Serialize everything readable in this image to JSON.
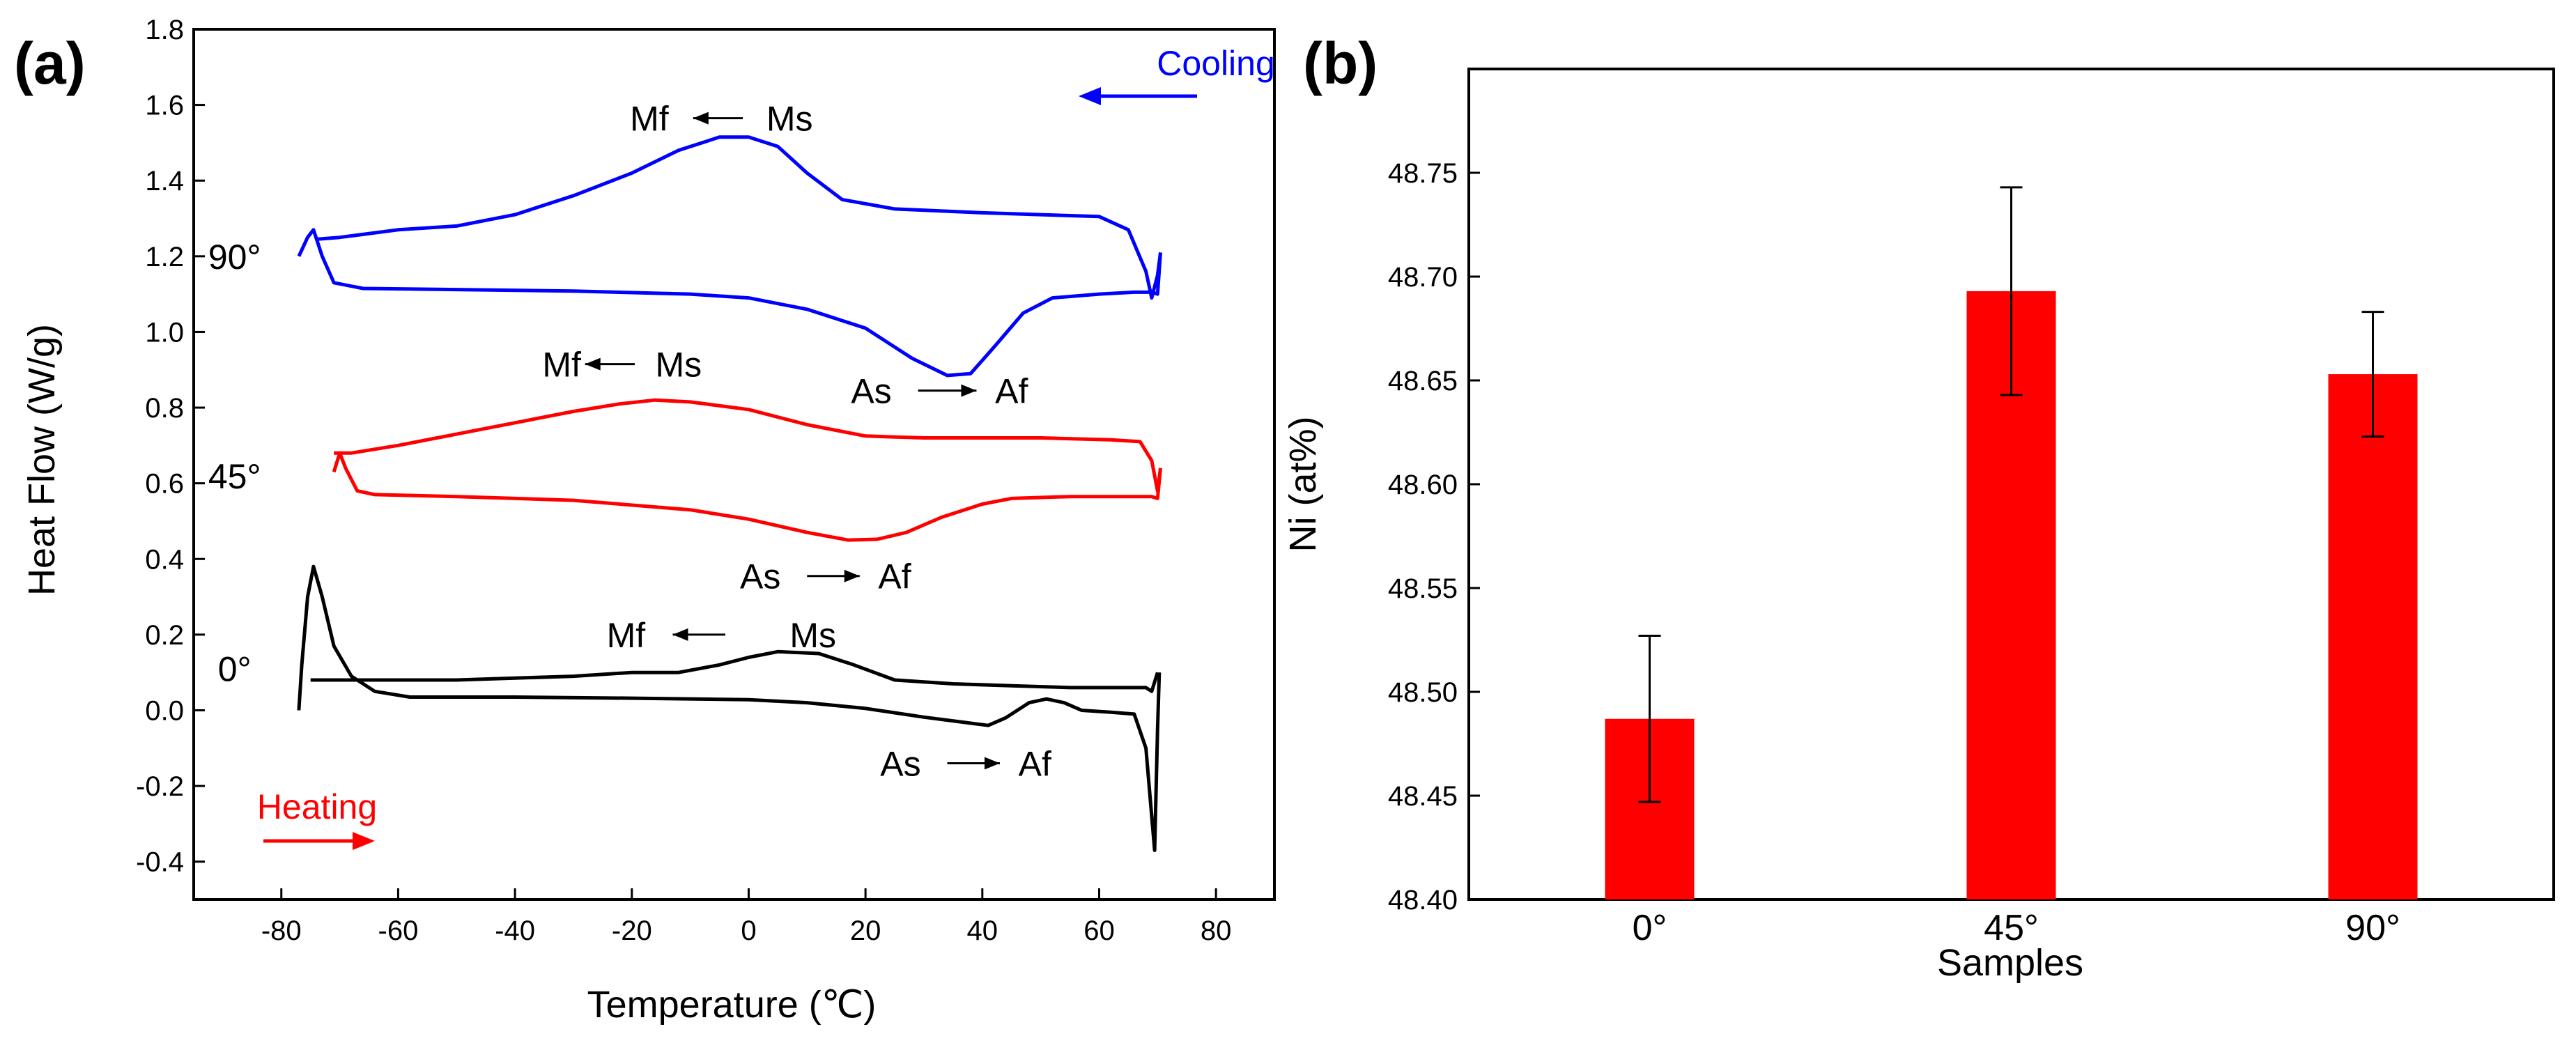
{
  "chart_data": [
    {
      "panel_label": "(a)",
      "type": "line",
      "xlabel": "Temperature (℃)",
      "ylabel": "Heat Flow (W/g)",
      "xlim": [
        -95,
        90
      ],
      "ylim": [
        -0.5,
        1.8
      ],
      "xticks": [
        -80,
        -60,
        -40,
        -20,
        0,
        20,
        40,
        60,
        80
      ],
      "yticks": [
        "-0.4",
        "-0.2",
        "0.0",
        "0.2",
        "0.4",
        "0.6",
        "0.8",
        "1.0",
        "1.2",
        "1.4",
        "1.6",
        "1.8"
      ],
      "cooling_label": "Cooling",
      "heating_label": "Heating",
      "series": [
        {
          "name": "0°",
          "color": "#000000",
          "cooling": [
            [
              70,
              0.1
            ],
            [
              69,
              0.05
            ],
            [
              68,
              0.06
            ],
            [
              65,
              0.06
            ],
            [
              55,
              0.06
            ],
            [
              45,
              0.065
            ],
            [
              35,
              0.07
            ],
            [
              25,
              0.08
            ],
            [
              18,
              0.12
            ],
            [
              12,
              0.15
            ],
            [
              5,
              0.155
            ],
            [
              0,
              0.14
            ],
            [
              -5,
              0.12
            ],
            [
              -12,
              0.1
            ],
            [
              -20,
              0.1
            ],
            [
              -30,
              0.09
            ],
            [
              -40,
              0.085
            ],
            [
              -50,
              0.08
            ],
            [
              -60,
              0.08
            ],
            [
              -70,
              0.08
            ],
            [
              -75,
              0.08
            ]
          ],
          "heating": [
            [
              -77,
              0.0
            ],
            [
              -76.5,
              0.12
            ],
            [
              -75.5,
              0.3
            ],
            [
              -74.5,
              0.38
            ],
            [
              -73,
              0.3
            ],
            [
              -71,
              0.17
            ],
            [
              -68,
              0.09
            ],
            [
              -64,
              0.05
            ],
            [
              -58,
              0.035
            ],
            [
              -40,
              0.035
            ],
            [
              -20,
              0.032
            ],
            [
              0,
              0.028
            ],
            [
              10,
              0.02
            ],
            [
              20,
              0.005
            ],
            [
              30,
              -0.018
            ],
            [
              37,
              -0.032
            ],
            [
              41,
              -0.04
            ],
            [
              44,
              -0.02
            ],
            [
              48,
              0.02
            ],
            [
              51,
              0.03
            ],
            [
              54,
              0.02
            ],
            [
              57,
              0.0
            ],
            [
              62,
              -0.005
            ],
            [
              66,
              -0.01
            ],
            [
              68,
              -0.1
            ],
            [
              69,
              -0.28
            ],
            [
              69.5,
              -0.37
            ],
            [
              70,
              -0.05
            ],
            [
              70.3,
              0.1
            ]
          ]
        },
        {
          "name": "45°",
          "color": "#ff0000",
          "cooling": [
            [
              70.5,
              0.64
            ],
            [
              70,
              0.58
            ],
            [
              69,
              0.66
            ],
            [
              67,
              0.71
            ],
            [
              62,
              0.715
            ],
            [
              50,
              0.72
            ],
            [
              40,
              0.72
            ],
            [
              30,
              0.72
            ],
            [
              20,
              0.725
            ],
            [
              10,
              0.755
            ],
            [
              0,
              0.795
            ],
            [
              -10,
              0.815
            ],
            [
              -16,
              0.82
            ],
            [
              -22,
              0.81
            ],
            [
              -30,
              0.79
            ],
            [
              -40,
              0.76
            ],
            [
              -50,
              0.73
            ],
            [
              -60,
              0.7
            ],
            [
              -68,
              0.68
            ],
            [
              -71,
              0.68
            ]
          ],
          "heating": [
            [
              -71,
              0.63
            ],
            [
              -70,
              0.68
            ],
            [
              -69,
              0.64
            ],
            [
              -67,
              0.58
            ],
            [
              -64,
              0.57
            ],
            [
              -50,
              0.565
            ],
            [
              -30,
              0.555
            ],
            [
              -10,
              0.53
            ],
            [
              0,
              0.505
            ],
            [
              10,
              0.47
            ],
            [
              17,
              0.45
            ],
            [
              22,
              0.452
            ],
            [
              27,
              0.47
            ],
            [
              33,
              0.51
            ],
            [
              40,
              0.545
            ],
            [
              45,
              0.56
            ],
            [
              55,
              0.565
            ],
            [
              65,
              0.565
            ],
            [
              69,
              0.565
            ],
            [
              70,
              0.56
            ],
            [
              70.5,
              0.64
            ]
          ]
        },
        {
          "name": "90°",
          "color": "#0000ff",
          "cooling": [
            [
              70.5,
              1.21
            ],
            [
              70,
              1.15
            ],
            [
              69,
              1.09
            ],
            [
              68,
              1.16
            ],
            [
              65,
              1.27
            ],
            [
              60,
              1.305
            ],
            [
              50,
              1.31
            ],
            [
              40,
              1.315
            ],
            [
              25,
              1.325
            ],
            [
              16,
              1.35
            ],
            [
              10,
              1.42
            ],
            [
              5,
              1.49
            ],
            [
              0,
              1.515
            ],
            [
              -5,
              1.515
            ],
            [
              -12,
              1.48
            ],
            [
              -20,
              1.42
            ],
            [
              -30,
              1.36
            ],
            [
              -40,
              1.31
            ],
            [
              -50,
              1.28
            ],
            [
              -60,
              1.27
            ],
            [
              -70,
              1.25
            ],
            [
              -74,
              1.245
            ]
          ],
          "heating": [
            [
              -77,
              1.2
            ],
            [
              -75.5,
              1.25
            ],
            [
              -74.5,
              1.27
            ],
            [
              -73,
              1.2
            ],
            [
              -71,
              1.13
            ],
            [
              -66,
              1.115
            ],
            [
              -50,
              1.112
            ],
            [
              -30,
              1.108
            ],
            [
              -10,
              1.1
            ],
            [
              0,
              1.09
            ],
            [
              10,
              1.06
            ],
            [
              20,
              1.01
            ],
            [
              28,
              0.93
            ],
            [
              34,
              0.885
            ],
            [
              38,
              0.89
            ],
            [
              42,
              0.96
            ],
            [
              47,
              1.05
            ],
            [
              52,
              1.09
            ],
            [
              60,
              1.1
            ],
            [
              66,
              1.105
            ],
            [
              69,
              1.105
            ],
            [
              70,
              1.1
            ],
            [
              70.5,
              1.21
            ]
          ]
        }
      ],
      "annotations": [
        {
          "text": "Mf",
          "x": -17,
          "y": 1.565,
          "arrow_from": [
            -1,
            1.565
          ],
          "arrow_to": [
            -9.5,
            1.565
          ],
          "text_end": "Ms",
          "text_end_x": 7
        },
        {
          "text": "As",
          "x": 21,
          "y": 0.845,
          "arrow_from": [
            29,
            0.845
          ],
          "arrow_to": [
            39,
            0.845
          ],
          "text_end": "Af",
          "text_end_x": 45
        },
        {
          "text": "Mf",
          "x": -32,
          "y": 0.915,
          "arrow_from": [
            -19.5,
            0.915
          ],
          "arrow_to": [
            -28,
            0.915
          ],
          "text_end": "Ms",
          "text_end_x": -12
        },
        {
          "text": "As",
          "x": 2,
          "y": 0.355,
          "arrow_from": [
            10,
            0.355
          ],
          "arrow_to": [
            19,
            0.355
          ],
          "text_end": "Af",
          "text_end_x": 25
        },
        {
          "text": "Mf",
          "x": -21,
          "y": 0.2,
          "arrow_from": [
            -4,
            0.2
          ],
          "arrow_to": [
            -13,
            0.2
          ],
          "text_end": "Ms",
          "text_end_x": 11
        },
        {
          "text": "As",
          "x": 26,
          "y": -0.14,
          "arrow_from": [
            34,
            -0.14
          ],
          "arrow_to": [
            43,
            -0.14
          ],
          "text_end": "Af",
          "text_end_x": 49
        }
      ],
      "curve_labels": [
        {
          "text": "90°",
          "x": -88,
          "y": 1.2
        },
        {
          "text": "45°",
          "x": -88,
          "y": 0.62
        },
        {
          "text": "0°",
          "x": -88,
          "y": 0.11
        }
      ]
    },
    {
      "panel_label": "(b)",
      "type": "bar",
      "xlabel": "Samples",
      "ylabel": "Ni (at%)",
      "categories": [
        "0°",
        "45°",
        "90°"
      ],
      "values": [
        48.487,
        48.693,
        48.653
      ],
      "errors": [
        0.04,
        0.05,
        0.03
      ],
      "ylim": [
        48.4,
        48.8
      ],
      "yticks": [
        "48.40",
        "48.45",
        "48.50",
        "48.55",
        "48.60",
        "48.65",
        "48.70",
        "48.75"
      ],
      "bar_color": "#ff0000"
    }
  ]
}
